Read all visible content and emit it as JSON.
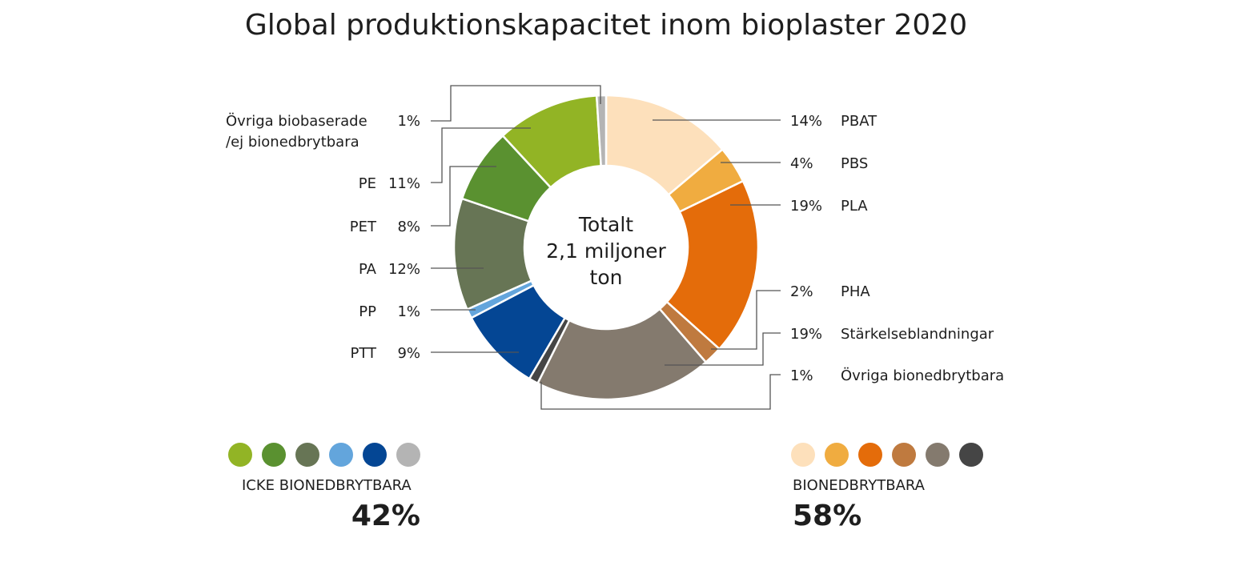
{
  "chart_data": {
    "type": "donut",
    "title": "Global produktionskapacitet inom bioplaster 2020",
    "center_label": [
      "Totalt",
      "2,1 miljoner",
      "ton"
    ],
    "slices": [
      {
        "name": "PBAT",
        "value": 14,
        "label": "14%",
        "color": "#fde0bb",
        "group": "bio"
      },
      {
        "name": "PBS",
        "value": 4,
        "label": "4%",
        "color": "#f0ac40",
        "group": "bio"
      },
      {
        "name": "PLA",
        "value": 19,
        "label": "19%",
        "color": "#e46c0a",
        "group": "bio"
      },
      {
        "name": "PHA",
        "value": 2,
        "label": "2%",
        "color": "#bf7a3f",
        "group": "bio"
      },
      {
        "name": "Stärkelseblandningar",
        "value": 19,
        "label": "19%",
        "color": "#847a6e",
        "group": "bio"
      },
      {
        "name": "Övriga bionedbrytbara",
        "value": 1,
        "label": "1%",
        "color": "#454545",
        "group": "bio"
      },
      {
        "name": "PTT",
        "value": 9,
        "label": "9%",
        "color": "#044694",
        "group": "nonbio"
      },
      {
        "name": "PP",
        "value": 1,
        "label": "1%",
        "color": "#63a5dc",
        "group": "nonbio"
      },
      {
        "name": "PA",
        "value": 12,
        "label": "12%",
        "color": "#677555",
        "group": "nonbio"
      },
      {
        "name": "PET",
        "value": 8,
        "label": "8%",
        "color": "#5a9130",
        "group": "nonbio"
      },
      {
        "name": "PE",
        "value": 11,
        "label": "11%",
        "color": "#92b425",
        "group": "nonbio"
      },
      {
        "name": "Övriga biobaserade /ej bionedbrytbara",
        "name_lines": [
          "Övriga biobaserade",
          "/ej bionedbrytbara"
        ],
        "value": 1,
        "label": "1%",
        "color": "#b4b4b4",
        "group": "nonbio"
      }
    ],
    "groups": {
      "nonbio": {
        "label": "ICKE BIONEDBRYTBARA",
        "total": "42%"
      },
      "bio": {
        "label": "BIONEDBRYTBARA",
        "total": "58%"
      }
    }
  }
}
